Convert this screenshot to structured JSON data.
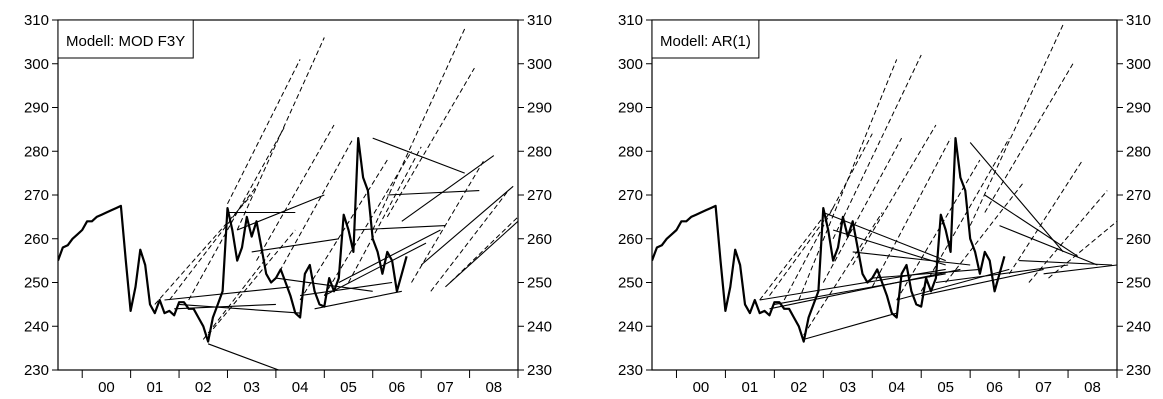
{
  "chart_data": [
    {
      "type": "line",
      "label": "Modell: MOD F3Y",
      "x_ticks": [
        "00",
        "01",
        "02",
        "03",
        "04",
        "05",
        "06",
        "07",
        "08"
      ],
      "y_ticks": [
        230,
        240,
        250,
        260,
        270,
        280,
        290,
        300,
        310
      ],
      "xlim": [
        1999.5,
        2009.0
      ],
      "ylim": [
        230,
        310
      ],
      "grid": false,
      "legend_position": "top-left",
      "actual_series": {
        "name": "",
        "x": [
          1999.5,
          1999.6,
          1999.7,
          1999.8,
          1999.9,
          2000.0,
          2000.1,
          2000.2,
          2000.3,
          2000.4,
          2000.5,
          2000.6,
          2000.7,
          2000.8,
          2000.9,
          2001.0,
          2001.1,
          2001.2,
          2001.3,
          2001.4,
          2001.5,
          2001.6,
          2001.7,
          2001.8,
          2001.9,
          2002.0,
          2002.1,
          2002.2,
          2002.3,
          2002.4,
          2002.5,
          2002.6,
          2002.7,
          2002.8,
          2002.9,
          2003.0,
          2003.1,
          2003.2,
          2003.3,
          2003.4,
          2003.5,
          2003.6,
          2003.7,
          2003.8,
          2003.9,
          2004.0,
          2004.1,
          2004.2,
          2004.3,
          2004.4,
          2004.5,
          2004.6,
          2004.7,
          2004.8,
          2004.9,
          2005.0,
          2005.1,
          2005.2,
          2005.3,
          2005.4,
          2005.5,
          2005.6,
          2005.7,
          2005.8,
          2005.9,
          2006.0,
          2006.1,
          2006.2,
          2006.3,
          2006.4,
          2006.5,
          2006.6,
          2006.7
        ],
        "values": [
          255,
          258,
          258.5,
          260,
          261,
          262,
          264,
          264,
          265,
          265.5,
          266,
          266.5,
          267,
          267.5,
          255,
          243.5,
          249,
          257.5,
          254,
          245,
          243,
          246,
          243,
          243.5,
          242.5,
          245.5,
          245.5,
          244,
          244,
          242,
          240,
          236.5,
          242,
          245,
          248,
          267,
          262,
          255,
          258,
          265,
          260.5,
          264,
          258,
          252,
          250,
          251,
          253,
          250,
          247,
          243,
          242,
          252,
          254,
          248,
          245,
          244.5,
          251,
          248,
          251,
          265.5,
          262,
          257,
          283,
          274,
          271,
          260,
          257,
          252,
          257,
          255,
          248,
          252,
          256
        ],
        "color": "#000000"
      },
      "forecast_series": [
        {
          "style": "dashed",
          "x": [
            2001.5,
            2003.5
          ],
          "values": [
            245,
            270
          ]
        },
        {
          "style": "dashed",
          "x": [
            2001.8,
            2003.6
          ],
          "values": [
            246,
            272
          ]
        },
        {
          "style": "dashed",
          "x": [
            2002.2,
            2004.2
          ],
          "values": [
            246,
            286
          ]
        },
        {
          "style": "dashed",
          "x": [
            2002.5,
            2003.9
          ],
          "values": [
            237,
            257
          ]
        },
        {
          "style": "dashed",
          "x": [
            2002.6,
            2004.4
          ],
          "values": [
            238,
            262
          ]
        },
        {
          "style": "dashed",
          "x": [
            2003.0,
            2004.5
          ],
          "values": [
            268,
            301
          ]
        },
        {
          "style": "dashed",
          "x": [
            2003.2,
            2005.0
          ],
          "values": [
            262,
            306
          ]
        },
        {
          "style": "dashed",
          "x": [
            2003.6,
            2005.2
          ],
          "values": [
            255,
            286
          ]
        },
        {
          "style": "dashed",
          "x": [
            2004.0,
            2005.6
          ],
          "values": [
            251,
            283
          ]
        },
        {
          "style": "dashed",
          "x": [
            2004.5,
            2006.3
          ],
          "values": [
            246,
            278
          ]
        },
        {
          "style": "dashed",
          "x": [
            2005.0,
            2006.8
          ],
          "values": [
            247,
            280
          ]
        },
        {
          "style": "dashed",
          "x": [
            2005.5,
            2007.0
          ],
          "values": [
            250,
            281
          ]
        },
        {
          "style": "dashed",
          "x": [
            2006.0,
            2007.9
          ],
          "values": [
            262,
            308
          ]
        },
        {
          "style": "dashed",
          "x": [
            2006.3,
            2008.1
          ],
          "values": [
            265,
            299
          ]
        },
        {
          "style": "dashed",
          "x": [
            2006.8,
            2008.3
          ],
          "values": [
            250,
            278
          ]
        },
        {
          "style": "dashed",
          "x": [
            2007.2,
            2008.8
          ],
          "values": [
            248,
            271
          ]
        },
        {
          "style": "dashed",
          "x": [
            2007.6,
            2009.0
          ],
          "values": [
            250,
            265
          ]
        },
        {
          "style": "solid",
          "x": [
            2001.7,
            2004.3
          ],
          "values": [
            246,
            249
          ]
        },
        {
          "style": "solid",
          "x": [
            2001.9,
            2004.0
          ],
          "values": [
            244,
            245
          ]
        },
        {
          "style": "solid",
          "x": [
            2002.0,
            2004.5
          ],
          "values": [
            245,
            243
          ]
        },
        {
          "style": "solid",
          "x": [
            2002.6,
            2004.3
          ],
          "values": [
            236,
            229
          ]
        },
        {
          "style": "solid",
          "x": [
            2003.0,
            2004.4
          ],
          "values": [
            266,
            266
          ]
        },
        {
          "style": "solid",
          "x": [
            2003.2,
            2005.0
          ],
          "values": [
            262,
            270
          ]
        },
        {
          "style": "solid",
          "x": [
            2003.5,
            2005.3
          ],
          "values": [
            257,
            260
          ]
        },
        {
          "style": "solid",
          "x": [
            2004.0,
            2006.0
          ],
          "values": [
            251,
            248
          ]
        },
        {
          "style": "solid",
          "x": [
            2004.5,
            2006.4
          ],
          "values": [
            247,
            250
          ]
        },
        {
          "style": "solid",
          "x": [
            2004.8,
            2006.6
          ],
          "values": [
            244,
            248
          ]
        },
        {
          "style": "solid",
          "x": [
            2005.0,
            2007.1
          ],
          "values": [
            247,
            259
          ]
        },
        {
          "style": "solid",
          "x": [
            2005.3,
            2007.4
          ],
          "values": [
            250,
            262
          ]
        },
        {
          "style": "solid",
          "x": [
            2005.6,
            2007.5
          ],
          "values": [
            262,
            263
          ]
        },
        {
          "style": "solid",
          "x": [
            2006.0,
            2007.9
          ],
          "values": [
            283,
            275
          ]
        },
        {
          "style": "solid",
          "x": [
            2006.3,
            2008.2
          ],
          "values": [
            270,
            271
          ]
        },
        {
          "style": "solid",
          "x": [
            2006.6,
            2008.5
          ],
          "values": [
            264,
            279
          ]
        },
        {
          "style": "solid",
          "x": [
            2007.0,
            2008.9
          ],
          "values": [
            254,
            272
          ]
        },
        {
          "style": "solid",
          "x": [
            2007.5,
            2009.0
          ],
          "values": [
            249,
            264
          ]
        }
      ]
    },
    {
      "type": "line",
      "label": "Modell: AR(1)",
      "x_ticks": [
        "00",
        "01",
        "02",
        "03",
        "04",
        "05",
        "06",
        "07",
        "08"
      ],
      "y_ticks": [
        230,
        240,
        250,
        260,
        270,
        280,
        290,
        300,
        310
      ],
      "xlim": [
        1999.5,
        2009.0
      ],
      "ylim": [
        230,
        310
      ],
      "grid": false,
      "legend_position": "top-left",
      "actual_series": {
        "name": "",
        "x": [
          1999.5,
          1999.6,
          1999.7,
          1999.8,
          1999.9,
          2000.0,
          2000.1,
          2000.2,
          2000.3,
          2000.4,
          2000.5,
          2000.6,
          2000.7,
          2000.8,
          2000.9,
          2001.0,
          2001.1,
          2001.2,
          2001.3,
          2001.4,
          2001.5,
          2001.6,
          2001.7,
          2001.8,
          2001.9,
          2002.0,
          2002.1,
          2002.2,
          2002.3,
          2002.4,
          2002.5,
          2002.6,
          2002.7,
          2002.8,
          2002.9,
          2003.0,
          2003.1,
          2003.2,
          2003.3,
          2003.4,
          2003.5,
          2003.6,
          2003.7,
          2003.8,
          2003.9,
          2004.0,
          2004.1,
          2004.2,
          2004.3,
          2004.4,
          2004.5,
          2004.6,
          2004.7,
          2004.8,
          2004.9,
          2005.0,
          2005.1,
          2005.2,
          2005.3,
          2005.4,
          2005.5,
          2005.6,
          2005.7,
          2005.8,
          2005.9,
          2006.0,
          2006.1,
          2006.2,
          2006.3,
          2006.4,
          2006.5,
          2006.6,
          2006.7
        ],
        "values": [
          255,
          258,
          258.5,
          260,
          261,
          262,
          264,
          264,
          265,
          265.5,
          266,
          266.5,
          267,
          267.5,
          255,
          243.5,
          249,
          257.5,
          254,
          245,
          243,
          246,
          243,
          243.5,
          242.5,
          245.5,
          245.5,
          244,
          244,
          242,
          240,
          236.5,
          242,
          245,
          248,
          267,
          262,
          255,
          258,
          265,
          260.5,
          264,
          258,
          252,
          250,
          251,
          253,
          250,
          247,
          243,
          242,
          252,
          254,
          248,
          245,
          244.5,
          251,
          248,
          251,
          265.5,
          262,
          257,
          283,
          274,
          271,
          260,
          257,
          252,
          257,
          255,
          248,
          252,
          256
        ],
        "color": "#000000"
      },
      "forecast_series": [
        {
          "style": "dashed",
          "x": [
            2001.7,
            2003.0
          ],
          "values": [
            246,
            265
          ]
        },
        {
          "style": "dashed",
          "x": [
            2001.9,
            2003.2
          ],
          "values": [
            247,
            267
          ]
        },
        {
          "style": "dashed",
          "x": [
            2002.2,
            2004.0
          ],
          "values": [
            246,
            284
          ]
        },
        {
          "style": "dashed",
          "x": [
            2002.5,
            2004.5
          ],
          "values": [
            246,
            301
          ]
        },
        {
          "style": "dashed",
          "x": [
            2002.6,
            2004.2
          ],
          "values": [
            238,
            266
          ]
        },
        {
          "style": "dashed",
          "x": [
            2003.0,
            2004.6
          ],
          "values": [
            250,
            283
          ]
        },
        {
          "style": "dashed",
          "x": [
            2003.2,
            2005.0
          ],
          "values": [
            260,
            302
          ]
        },
        {
          "style": "dashed",
          "x": [
            2003.6,
            2005.3
          ],
          "values": [
            254,
            286
          ]
        },
        {
          "style": "dashed",
          "x": [
            2004.0,
            2005.6
          ],
          "values": [
            249,
            283
          ]
        },
        {
          "style": "dashed",
          "x": [
            2004.5,
            2006.2
          ],
          "values": [
            246,
            278
          ]
        },
        {
          "style": "dashed",
          "x": [
            2005.0,
            2006.8
          ],
          "values": [
            248,
            283
          ]
        },
        {
          "style": "dashed",
          "x": [
            2005.5,
            2007.1
          ],
          "values": [
            250,
            273
          ]
        },
        {
          "style": "dashed",
          "x": [
            2006.0,
            2007.9
          ],
          "values": [
            263,
            309
          ]
        },
        {
          "style": "dashed",
          "x": [
            2006.3,
            2008.1
          ],
          "values": [
            266,
            300
          ]
        },
        {
          "style": "dashed",
          "x": [
            2006.8,
            2008.3
          ],
          "values": [
            252,
            278
          ]
        },
        {
          "style": "dashed",
          "x": [
            2007.2,
            2008.8
          ],
          "values": [
            250,
            271
          ]
        },
        {
          "style": "dashed",
          "x": [
            2007.6,
            2009.0
          ],
          "values": [
            251,
            264
          ]
        },
        {
          "style": "solid",
          "x": [
            2001.7,
            2005.5
          ],
          "values": [
            246,
            253
          ]
        },
        {
          "style": "solid",
          "x": [
            2001.9,
            2005.8
          ],
          "values": [
            244,
            253
          ]
        },
        {
          "style": "solid",
          "x": [
            2002.0,
            2005.5
          ],
          "values": [
            245,
            252
          ]
        },
        {
          "style": "solid",
          "x": [
            2002.6,
            2004.5
          ],
          "values": [
            237,
            243
          ]
        },
        {
          "style": "solid",
          "x": [
            2003.0,
            2005.5
          ],
          "values": [
            266,
            255
          ]
        },
        {
          "style": "solid",
          "x": [
            2003.2,
            2005.5
          ],
          "values": [
            262,
            254
          ]
        },
        {
          "style": "solid",
          "x": [
            2003.6,
            2006.0
          ],
          "values": [
            257,
            254
          ]
        },
        {
          "style": "solid",
          "x": [
            2004.0,
            2006.2
          ],
          "values": [
            251,
            253
          ]
        },
        {
          "style": "solid",
          "x": [
            2004.5,
            2006.8
          ],
          "values": [
            246,
            253
          ]
        },
        {
          "style": "solid",
          "x": [
            2005.0,
            2007.5
          ],
          "values": [
            247,
            253
          ]
        },
        {
          "style": "solid",
          "x": [
            2005.3,
            2008.0
          ],
          "values": [
            250,
            254
          ]
        },
        {
          "style": "solid",
          "x": [
            2006.0,
            2007.9
          ],
          "values": [
            282,
            257
          ]
        },
        {
          "style": "solid",
          "x": [
            2006.3,
            2008.2
          ],
          "values": [
            270,
            256
          ]
        },
        {
          "style": "solid",
          "x": [
            2006.6,
            2008.6
          ],
          "values": [
            263,
            254
          ]
        },
        {
          "style": "solid",
          "x": [
            2007.0,
            2008.9
          ],
          "values": [
            255,
            254
          ]
        },
        {
          "style": "solid",
          "x": [
            2007.5,
            2009.0
          ],
          "values": [
            252,
            254
          ]
        }
      ]
    }
  ]
}
